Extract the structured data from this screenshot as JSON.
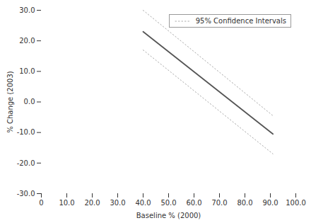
{
  "chart_data": {
    "type": "line",
    "xlabel": "Baseline % (2000)",
    "ylabel": "% Change (2003)",
    "xlim": [
      0,
      100
    ],
    "ylim": [
      -30,
      30
    ],
    "xticks": [
      0,
      {
        "value": 10,
        "label": "10.0"
      },
      {
        "value": 20,
        "label": "20.0"
      },
      {
        "value": 30,
        "label": "30.0"
      },
      {
        "value": 40,
        "label": "40.0"
      },
      {
        "value": 50,
        "label": "50.0"
      },
      {
        "value": 60,
        "label": "60.0"
      },
      {
        "value": 70,
        "label": "70.0"
      },
      {
        "value": 80,
        "label": "80.0"
      },
      {
        "value": 90,
        "label": "90.0"
      },
      {
        "value": 100,
        "label": "100.0"
      }
    ],
    "yticks": [
      {
        "value": -30,
        "label": "-30.0"
      },
      {
        "value": -20,
        "label": "-20.0"
      },
      {
        "value": -10,
        "label": "-10.0"
      },
      {
        "value": 0,
        "label": "0.0"
      },
      {
        "value": 10,
        "label": "10.0"
      },
      {
        "value": 20,
        "label": "20.0"
      },
      {
        "value": 30,
        "label": "30.0"
      }
    ],
    "x": [
      40,
      91
    ],
    "series": [
      {
        "name": "95% Confidence Intervals",
        "color": "#aaaaaa",
        "line_style": "dotted",
        "values": [
          30.0,
          -4.5
        ]
      },
      {
        "name": "95% Confidence Intervals",
        "color": "#aaaaaa",
        "line_style": "dotted",
        "values": [
          17.0,
          -17.0
        ]
      },
      {
        "color": "#555555",
        "line_style": "solid",
        "values": [
          23.0,
          -10.5
        ]
      }
    ],
    "legend": "upper right",
    "grid": false
  }
}
